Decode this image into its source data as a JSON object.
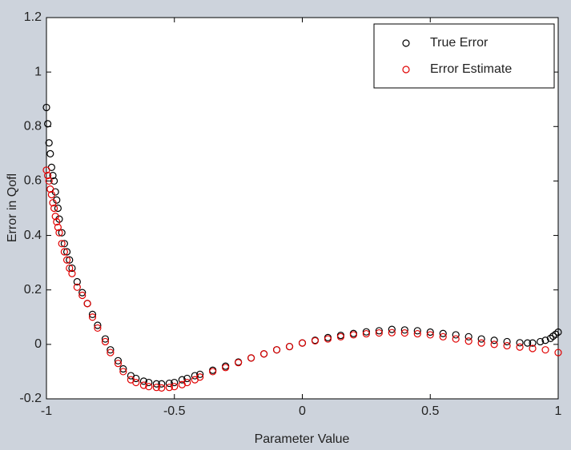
{
  "chart_data": {
    "type": "scatter",
    "xlabel": "Parameter Value",
    "ylabel": "Error in Qofl",
    "xlim": [
      -1,
      1
    ],
    "ylim": [
      -0.2,
      1.2
    ],
    "xticks": [
      -1,
      -0.5,
      0,
      0.5,
      1
    ],
    "yticks": [
      -0.2,
      0,
      0.2,
      0.4,
      0.6,
      0.8,
      1,
      1.2
    ],
    "legend": "upper right",
    "series": [
      {
        "name": "True Error",
        "color": "#000000",
        "x": [
          -1,
          -0.995,
          -0.99,
          -0.985,
          -0.98,
          -0.975,
          -0.97,
          -0.965,
          -0.96,
          -0.955,
          -0.95,
          -0.94,
          -0.93,
          -0.92,
          -0.91,
          -0.9,
          -0.88,
          -0.86,
          -0.84,
          -0.82,
          -0.8,
          -0.77,
          -0.75,
          -0.72,
          -0.7,
          -0.67,
          -0.65,
          -0.62,
          -0.6,
          -0.57,
          -0.55,
          -0.52,
          -0.5,
          -0.47,
          -0.45,
          -0.42,
          -0.4,
          -0.35,
          -0.3,
          -0.25,
          -0.2,
          -0.15,
          -0.1,
          -0.05,
          0,
          0.05,
          0.1,
          0.15,
          0.2,
          0.25,
          0.3,
          0.35,
          0.4,
          0.45,
          0.5,
          0.55,
          0.6,
          0.65,
          0.7,
          0.75,
          0.8,
          0.85,
          0.88,
          0.9,
          0.93,
          0.95,
          0.97,
          0.98,
          0.99,
          1
        ],
        "values": [
          0.87,
          0.81,
          0.74,
          0.7,
          0.65,
          0.62,
          0.6,
          0.56,
          0.53,
          0.5,
          0.46,
          0.41,
          0.37,
          0.34,
          0.31,
          0.28,
          0.23,
          0.19,
          0.15,
          0.11,
          0.07,
          0.02,
          -0.02,
          -0.06,
          -0.09,
          -0.115,
          -0.125,
          -0.135,
          -0.14,
          -0.145,
          -0.145,
          -0.143,
          -0.14,
          -0.13,
          -0.125,
          -0.115,
          -0.11,
          -0.095,
          -0.08,
          -0.065,
          -0.05,
          -0.035,
          -0.02,
          -0.008,
          0.005,
          0.015,
          0.025,
          0.033,
          0.04,
          0.046,
          0.05,
          0.055,
          0.053,
          0.05,
          0.045,
          0.04,
          0.035,
          0.028,
          0.02,
          0.015,
          0.01,
          0.006,
          0.005,
          0.005,
          0.01,
          0.015,
          0.022,
          0.03,
          0.037,
          0.045
        ]
      },
      {
        "name": "Error Estimate",
        "color": "#e00000",
        "x": [
          -1,
          -0.995,
          -0.99,
          -0.985,
          -0.98,
          -0.975,
          -0.97,
          -0.965,
          -0.96,
          -0.955,
          -0.95,
          -0.94,
          -0.93,
          -0.92,
          -0.91,
          -0.9,
          -0.88,
          -0.86,
          -0.84,
          -0.82,
          -0.8,
          -0.77,
          -0.75,
          -0.72,
          -0.7,
          -0.67,
          -0.65,
          -0.62,
          -0.6,
          -0.57,
          -0.55,
          -0.52,
          -0.5,
          -0.47,
          -0.45,
          -0.42,
          -0.4,
          -0.35,
          -0.3,
          -0.25,
          -0.2,
          -0.15,
          -0.1,
          -0.05,
          0,
          0.05,
          0.1,
          0.15,
          0.2,
          0.25,
          0.3,
          0.35,
          0.4,
          0.45,
          0.5,
          0.55,
          0.6,
          0.65,
          0.7,
          0.75,
          0.8,
          0.85,
          0.9,
          0.95,
          1
        ],
        "values": [
          0.64,
          0.62,
          0.6,
          0.57,
          0.55,
          0.52,
          0.5,
          0.47,
          0.45,
          0.43,
          0.41,
          0.37,
          0.34,
          0.31,
          0.28,
          0.26,
          0.21,
          0.18,
          0.15,
          0.1,
          0.06,
          0.01,
          -0.03,
          -0.07,
          -0.1,
          -0.13,
          -0.14,
          -0.15,
          -0.155,
          -0.158,
          -0.16,
          -0.158,
          -0.155,
          -0.148,
          -0.14,
          -0.13,
          -0.12,
          -0.1,
          -0.085,
          -0.067,
          -0.05,
          -0.035,
          -0.02,
          -0.008,
          0.005,
          0.013,
          0.02,
          0.028,
          0.035,
          0.039,
          0.042,
          0.043,
          0.042,
          0.039,
          0.035,
          0.028,
          0.02,
          0.012,
          0.005,
          0,
          -0.005,
          -0.01,
          -0.015,
          -0.02,
          -0.03
        ]
      }
    ]
  }
}
